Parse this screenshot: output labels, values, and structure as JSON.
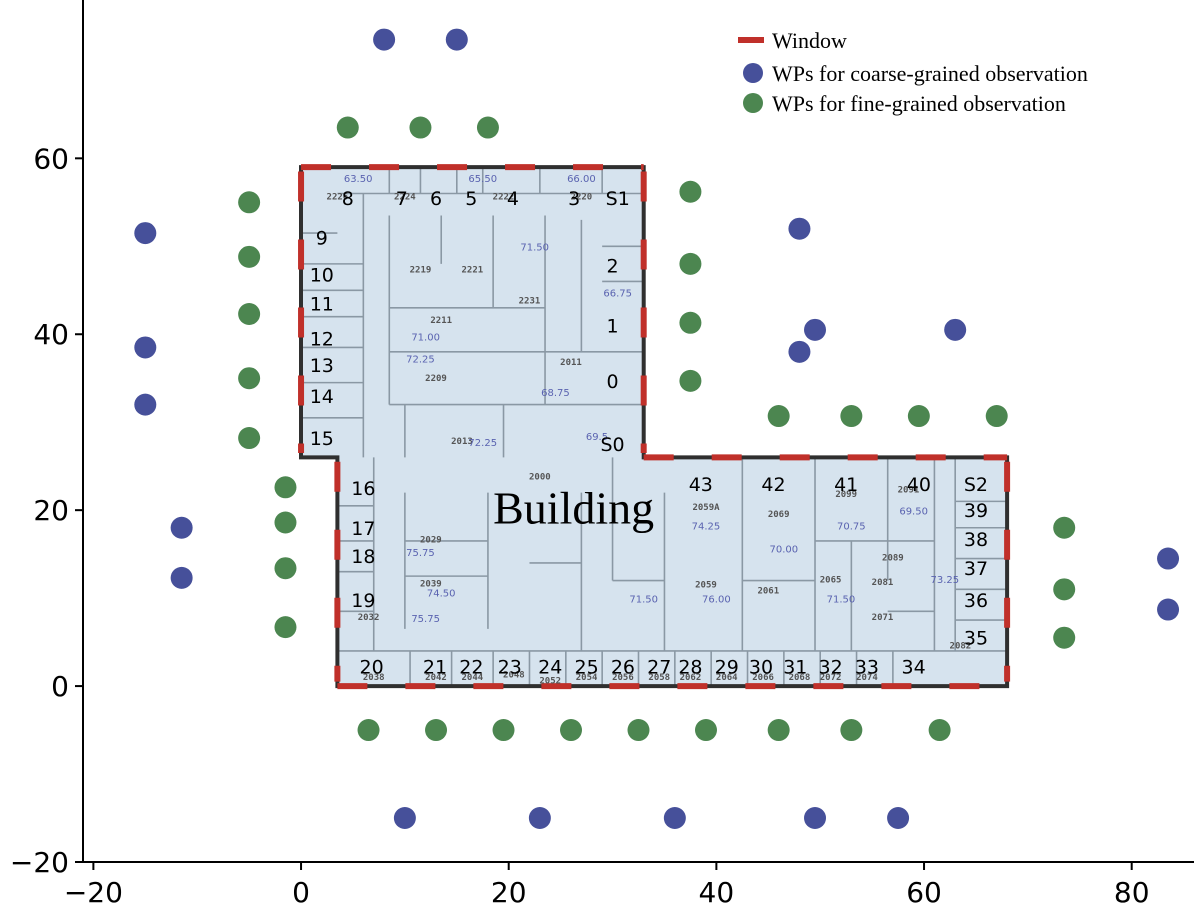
{
  "chart_data": {
    "type": "scatter",
    "xlim": [
      -21,
      86
    ],
    "ylim": [
      -20,
      78
    ],
    "xticks": [
      -20,
      0,
      20,
      40,
      60,
      80
    ],
    "yticks": [
      -20,
      0,
      20,
      40,
      60
    ],
    "grid": false,
    "legend_placement": "top-right",
    "legend": [
      {
        "label": "Window",
        "kind": "line",
        "color": "#c0302a"
      },
      {
        "label": "WPs for coarse-grained observation",
        "kind": "point",
        "color": "#46509a"
      },
      {
        "label": "WPs for fine-grained observation",
        "kind": "point",
        "color": "#4c8650"
      }
    ],
    "building_label": "Building",
    "building_outline": [
      [
        0,
        59
      ],
      [
        33,
        59
      ],
      [
        33,
        26
      ],
      [
        68,
        26
      ],
      [
        68,
        0
      ],
      [
        3.5,
        0
      ],
      [
        3.5,
        26
      ],
      [
        0,
        26
      ]
    ],
    "windows": [
      {
        "from": [
          0,
          58.5
        ],
        "to": [
          0,
          26.5
        ]
      },
      {
        "from": [
          33,
          58.5
        ],
        "to": [
          33,
          26.5
        ]
      },
      {
        "from": [
          68,
          25.5
        ],
        "to": [
          68,
          0.5
        ]
      },
      {
        "from": [
          3.5,
          25.5
        ],
        "to": [
          3.5,
          0.5
        ]
      },
      {
        "from": [
          0,
          59
        ],
        "to": [
          33,
          59
        ]
      },
      {
        "from": [
          33,
          26
        ],
        "to": [
          68,
          26
        ]
      },
      {
        "from": [
          3.5,
          0
        ],
        "to": [
          68,
          0
        ]
      }
    ],
    "series": [
      {
        "name": "WPs for coarse-grained observation",
        "color": "#46509a",
        "points": [
          [
            8,
            73.5
          ],
          [
            15,
            73.5
          ],
          [
            -15,
            51.5
          ],
          [
            -15,
            38.5
          ],
          [
            -15,
            32
          ],
          [
            -11.5,
            18
          ],
          [
            -11.5,
            12.3
          ],
          [
            48,
            52
          ],
          [
            49.5,
            40.5
          ],
          [
            48,
            38
          ],
          [
            63,
            40.5
          ],
          [
            83.5,
            14.5
          ],
          [
            83.5,
            8.7
          ],
          [
            10,
            -15
          ],
          [
            23,
            -15
          ],
          [
            36,
            -15
          ],
          [
            49.5,
            -15
          ],
          [
            57.5,
            -15
          ]
        ]
      },
      {
        "name": "WPs for fine-grained observation",
        "color": "#4c8650",
        "points": [
          [
            4.5,
            63.5
          ],
          [
            11.5,
            63.5
          ],
          [
            18,
            63.5
          ],
          [
            -5,
            55
          ],
          [
            -5,
            48.8
          ],
          [
            -5,
            42.3
          ],
          [
            -5,
            35
          ],
          [
            -5,
            28.2
          ],
          [
            -1.5,
            22.6
          ],
          [
            -1.5,
            18.6
          ],
          [
            -1.5,
            13.4
          ],
          [
            -1.5,
            6.7
          ],
          [
            37.5,
            56.2
          ],
          [
            37.5,
            48
          ],
          [
            37.5,
            41.3
          ],
          [
            37.5,
            34.7
          ],
          [
            46,
            30.7
          ],
          [
            53,
            30.7
          ],
          [
            59.5,
            30.7
          ],
          [
            67,
            30.7
          ],
          [
            73.5,
            18
          ],
          [
            73.5,
            11
          ],
          [
            73.5,
            5.5
          ],
          [
            6.5,
            -5
          ],
          [
            13,
            -5
          ],
          [
            19.5,
            -5
          ],
          [
            26,
            -5
          ],
          [
            32.5,
            -5
          ],
          [
            39,
            -5
          ],
          [
            46,
            -5
          ],
          [
            53,
            -5
          ],
          [
            61.5,
            -5
          ]
        ]
      }
    ],
    "room_labels": [
      {
        "text": "8",
        "x": 4.5,
        "y": 55.5
      },
      {
        "text": "7",
        "x": 9.7,
        "y": 55.5
      },
      {
        "text": "6",
        "x": 13,
        "y": 55.5
      },
      {
        "text": "5",
        "x": 16.4,
        "y": 55.5
      },
      {
        "text": "4",
        "x": 20.4,
        "y": 55.5
      },
      {
        "text": "3",
        "x": 26.3,
        "y": 55.5
      },
      {
        "text": "S1",
        "x": 30.5,
        "y": 55.5
      },
      {
        "text": "9",
        "x": 2,
        "y": 51
      },
      {
        "text": "10",
        "x": 2,
        "y": 46.8
      },
      {
        "text": "2",
        "x": 30,
        "y": 47.8
      },
      {
        "text": "11",
        "x": 2,
        "y": 43.5
      },
      {
        "text": "1",
        "x": 30,
        "y": 41
      },
      {
        "text": "12",
        "x": 2,
        "y": 39.5
      },
      {
        "text": "13",
        "x": 2,
        "y": 36.5
      },
      {
        "text": "0",
        "x": 30,
        "y": 34.7
      },
      {
        "text": "14",
        "x": 2,
        "y": 33
      },
      {
        "text": "15",
        "x": 2,
        "y": 28.2
      },
      {
        "text": "S0",
        "x": 30,
        "y": 27.5
      },
      {
        "text": "16",
        "x": 6,
        "y": 22.5
      },
      {
        "text": "43",
        "x": 38.5,
        "y": 23
      },
      {
        "text": "42",
        "x": 45.5,
        "y": 23
      },
      {
        "text": "41",
        "x": 52.5,
        "y": 23
      },
      {
        "text": "40",
        "x": 59.5,
        "y": 23
      },
      {
        "text": "S2",
        "x": 65,
        "y": 23
      },
      {
        "text": "17",
        "x": 6,
        "y": 18
      },
      {
        "text": "39",
        "x": 65,
        "y": 20
      },
      {
        "text": "38",
        "x": 65,
        "y": 16.7
      },
      {
        "text": "18",
        "x": 6,
        "y": 14.8
      },
      {
        "text": "37",
        "x": 65,
        "y": 13.4
      },
      {
        "text": "19",
        "x": 6,
        "y": 9.8
      },
      {
        "text": "36",
        "x": 65,
        "y": 9.8
      },
      {
        "text": "35",
        "x": 65,
        "y": 5.5
      },
      {
        "text": "20",
        "x": 6.8,
        "y": 2.2
      },
      {
        "text": "21",
        "x": 12.9,
        "y": 2.2
      },
      {
        "text": "22",
        "x": 16.4,
        "y": 2.2
      },
      {
        "text": "23",
        "x": 20.1,
        "y": 2.2
      },
      {
        "text": "24",
        "x": 24,
        "y": 2.2
      },
      {
        "text": "25",
        "x": 27.5,
        "y": 2.2
      },
      {
        "text": "26",
        "x": 31,
        "y": 2.2
      },
      {
        "text": "27",
        "x": 34.5,
        "y": 2.2
      },
      {
        "text": "28",
        "x": 37.5,
        "y": 2.2
      },
      {
        "text": "29",
        "x": 41,
        "y": 2.2
      },
      {
        "text": "30",
        "x": 44.3,
        "y": 2.2
      },
      {
        "text": "31",
        "x": 47.6,
        "y": 2.2
      },
      {
        "text": "32",
        "x": 51,
        "y": 2.2
      },
      {
        "text": "33",
        "x": 54.5,
        "y": 2.2
      },
      {
        "text": "34",
        "x": 59,
        "y": 2.2
      }
    ],
    "room_codes": [
      {
        "text": "2226",
        "x": 3.5,
        "y": 55.3
      },
      {
        "text": "2224",
        "x": 10,
        "y": 55.3
      },
      {
        "text": "2222",
        "x": 19.5,
        "y": 55.3
      },
      {
        "text": "2220",
        "x": 27,
        "y": 55.3
      },
      {
        "text": "2219",
        "x": 11.5,
        "y": 47
      },
      {
        "text": "2221",
        "x": 16.5,
        "y": 47
      },
      {
        "text": "2231",
        "x": 22,
        "y": 43.5
      },
      {
        "text": "2211",
        "x": 13.5,
        "y": 41.3
      },
      {
        "text": "2209",
        "x": 13,
        "y": 34.7
      },
      {
        "text": "2011",
        "x": 26,
        "y": 36.5
      },
      {
        "text": "2013",
        "x": 15.5,
        "y": 27.5
      },
      {
        "text": "2000",
        "x": 23,
        "y": 23.5
      },
      {
        "text": "2059A",
        "x": 39,
        "y": 20
      },
      {
        "text": "2069",
        "x": 46,
        "y": 19.2
      },
      {
        "text": "2099",
        "x": 52.5,
        "y": 21.5
      },
      {
        "text": "2091",
        "x": 58.5,
        "y": 22
      },
      {
        "text": "2029",
        "x": 12.5,
        "y": 16.3
      },
      {
        "text": "2039",
        "x": 12.5,
        "y": 11.3
      },
      {
        "text": "2059",
        "x": 39,
        "y": 11.2
      },
      {
        "text": "2061",
        "x": 45,
        "y": 10.5
      },
      {
        "text": "2065",
        "x": 51,
        "y": 11.8
      },
      {
        "text": "2081",
        "x": 56,
        "y": 11.5
      },
      {
        "text": "2089",
        "x": 57,
        "y": 14.3
      },
      {
        "text": "2071",
        "x": 56,
        "y": 7.5
      },
      {
        "text": "2082",
        "x": 63.5,
        "y": 4.3
      },
      {
        "text": "2032",
        "x": 6.5,
        "y": 7.5
      },
      {
        "text": "2038",
        "x": 7,
        "y": 0.7
      },
      {
        "text": "2042",
        "x": 13,
        "y": 0.7
      },
      {
        "text": "2044",
        "x": 16.5,
        "y": 0.7
      },
      {
        "text": "2048",
        "x": 20.5,
        "y": 1
      },
      {
        "text": "2052",
        "x": 24,
        "y": 0.3
      },
      {
        "text": "2054",
        "x": 27.5,
        "y": 0.7
      },
      {
        "text": "2056",
        "x": 31,
        "y": 0.7
      },
      {
        "text": "2058",
        "x": 34.5,
        "y": 0.7
      },
      {
        "text": "2062",
        "x": 37.5,
        "y": 0.7
      },
      {
        "text": "2064",
        "x": 41,
        "y": 0.7
      },
      {
        "text": "2066",
        "x": 44.5,
        "y": 0.7
      },
      {
        "text": "2068",
        "x": 48,
        "y": 0.7
      },
      {
        "text": "2072",
        "x": 51,
        "y": 0.7
      },
      {
        "text": "2074",
        "x": 54.5,
        "y": 0.7
      }
    ],
    "temperature_labels": [
      {
        "text": "63.50",
        "x": 5.5,
        "y": 57.3
      },
      {
        "text": "65.50",
        "x": 17.5,
        "y": 57.3
      },
      {
        "text": "66.00",
        "x": 27,
        "y": 57.3
      },
      {
        "text": "71.50",
        "x": 22.5,
        "y": 49.5
      },
      {
        "text": "66.75",
        "x": 30.5,
        "y": 44.3
      },
      {
        "text": "71.00",
        "x": 12,
        "y": 39.3
      },
      {
        "text": "72.25",
        "x": 11.5,
        "y": 36.8
      },
      {
        "text": "68.75",
        "x": 24.5,
        "y": 33
      },
      {
        "text": "69.5",
        "x": 28.5,
        "y": 28
      },
      {
        "text": "72.25",
        "x": 17.5,
        "y": 27.3
      },
      {
        "text": "74.25",
        "x": 39,
        "y": 17.8
      },
      {
        "text": "70.00",
        "x": 46.5,
        "y": 15.2
      },
      {
        "text": "70.75",
        "x": 53,
        "y": 17.8
      },
      {
        "text": "69.50",
        "x": 59,
        "y": 19.5
      },
      {
        "text": "75.75",
        "x": 11.5,
        "y": 14.8
      },
      {
        "text": "74.50",
        "x": 13.5,
        "y": 10.2
      },
      {
        "text": "75.75",
        "x": 12,
        "y": 7.3
      },
      {
        "text": "71.50",
        "x": 33,
        "y": 9.5
      },
      {
        "text": "76.00",
        "x": 40,
        "y": 9.5
      },
      {
        "text": "71.50",
        "x": 52,
        "y": 9.5
      },
      {
        "text": "73.25",
        "x": 62,
        "y": 11.7
      }
    ]
  }
}
